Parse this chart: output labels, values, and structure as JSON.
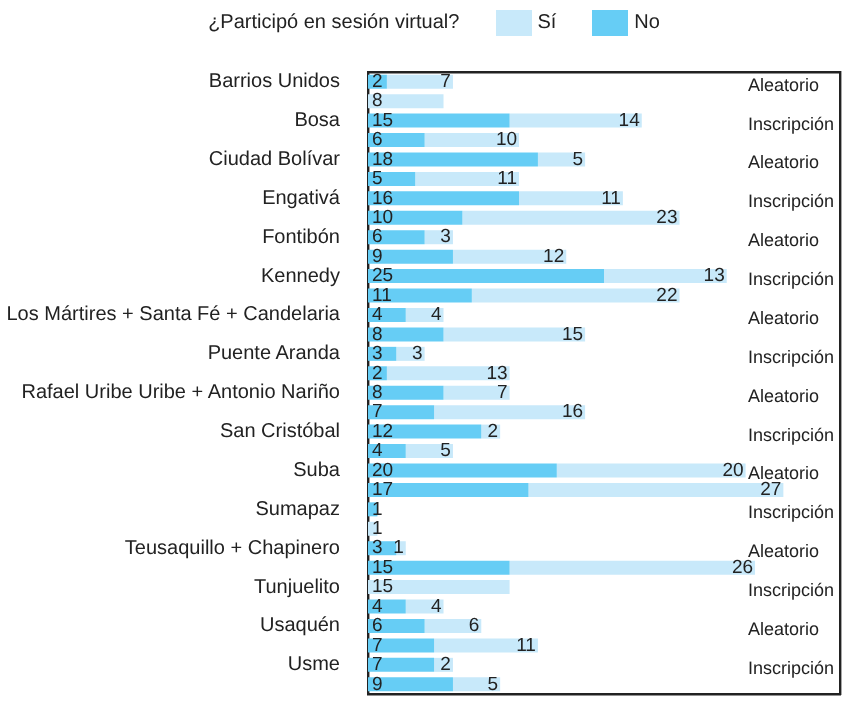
{
  "chart_data": {
    "type": "bar",
    "orientation": "horizontal",
    "stacked": true,
    "legend": "top",
    "legend_title": "¿Participó en sesión virtual?",
    "tick_labels": "y",
    "xlim": [
      0,
      50
    ],
    "categories": [
      "Barrios Unidos",
      null,
      "Bosa",
      null,
      "Ciudad Bolívar",
      null,
      "Engativá",
      null,
      "Fontibón",
      null,
      "Kennedy",
      null,
      "Los Mártires + Santa Fé + Candelaria",
      null,
      "Puente Aranda",
      null,
      "Rafael Uribe Uribe + Antonio Nariño",
      null,
      "San Cristóbal",
      null,
      "Suba",
      null,
      "Sumapaz",
      null,
      "Teusaquillo + Chapinero",
      null,
      "Tunjuelito",
      null,
      "Usaquén",
      null,
      "Usme",
      null
    ],
    "series": [
      {
        "name": "No",
        "color": "#66cdf5",
        "values": [
          2,
          0,
          15,
          6,
          18,
          5,
          16,
          10,
          6,
          9,
          25,
          11,
          4,
          8,
          3,
          2,
          8,
          7,
          12,
          4,
          20,
          17,
          1,
          0,
          3,
          15,
          0,
          4,
          6,
          7,
          7,
          9
        ],
        "value_labels": [
          "2",
          null,
          "15",
          "6",
          "18",
          "5",
          "16",
          "10",
          "6",
          "9",
          "25",
          "11",
          "4",
          "8",
          "3",
          "2",
          "8",
          "7",
          "12",
          "4",
          "20",
          "17",
          "1",
          null,
          "3",
          "15",
          null,
          "4",
          "6",
          "7",
          "7",
          "9"
        ]
      },
      {
        "name": "Sí",
        "color": "#c8e9fa",
        "values": [
          7,
          8,
          14,
          10,
          5,
          11,
          11,
          23,
          3,
          12,
          13,
          22,
          4,
          15,
          3,
          13,
          7,
          16,
          2,
          5,
          20,
          27,
          0,
          1,
          1,
          26,
          15,
          4,
          6,
          11,
          2,
          5
        ],
        "value_labels": [
          "7",
          "8",
          "14",
          "10",
          "5",
          "11",
          "11",
          "23",
          "3",
          "12",
          "13",
          "22",
          "4",
          "15",
          "3",
          "13",
          "7",
          "16",
          "2",
          "5",
          "20",
          "27",
          null,
          "1",
          "1",
          "26",
          "15",
          "4",
          "6",
          "11",
          "2",
          "5"
        ]
      }
    ],
    "annotations": [
      "Aleatorio",
      "Inscripción",
      "Aleatorio",
      "Inscripción",
      "Aleatorio",
      "Inscripción",
      "Aleatorio",
      "Inscripción",
      "Aleatorio",
      "Inscripción",
      "Aleatorio",
      "Inscripción",
      "Aleatorio",
      "Inscripción",
      "Aleatorio",
      "Inscripción"
    ]
  }
}
